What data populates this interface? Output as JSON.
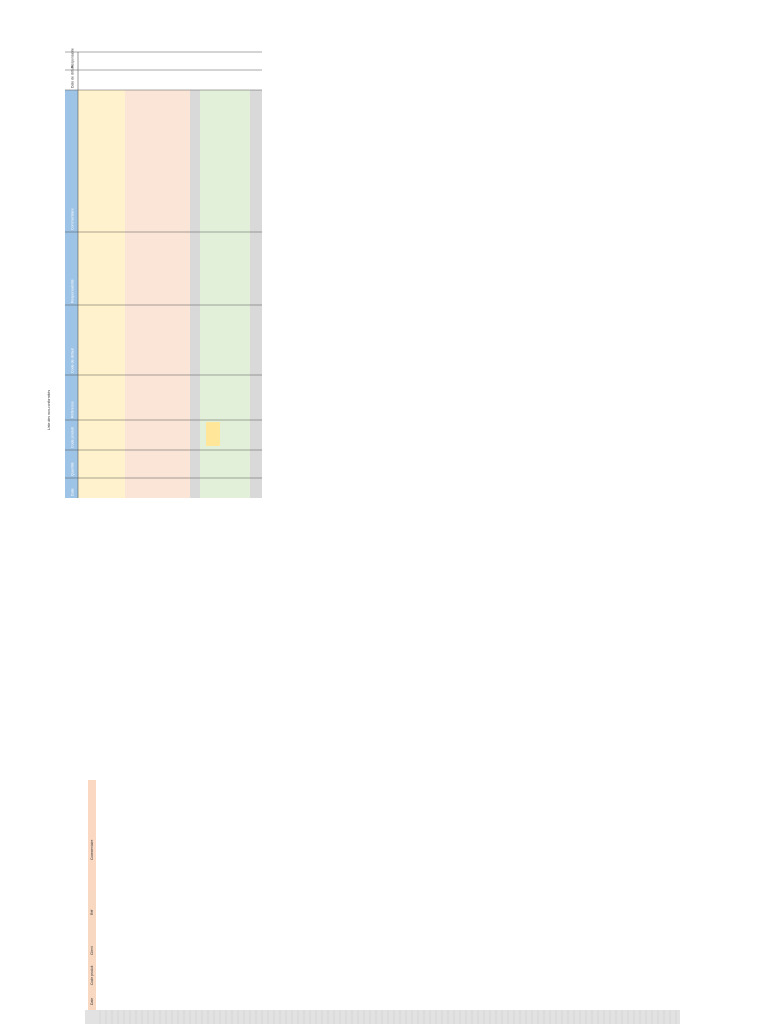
{
  "title": "Liste des non-conformités",
  "table": {
    "headers": [
      "Date",
      "Quantité",
      "Code produit",
      "Référence",
      "Code de défaut",
      "Responsabilité",
      "Commentaire",
      "Date de clôture",
      "Responsable"
    ]
  },
  "lower_table": {
    "headers": [
      "Date",
      "Code produit",
      "Client",
      "Réf",
      "Commentaire"
    ]
  }
}
